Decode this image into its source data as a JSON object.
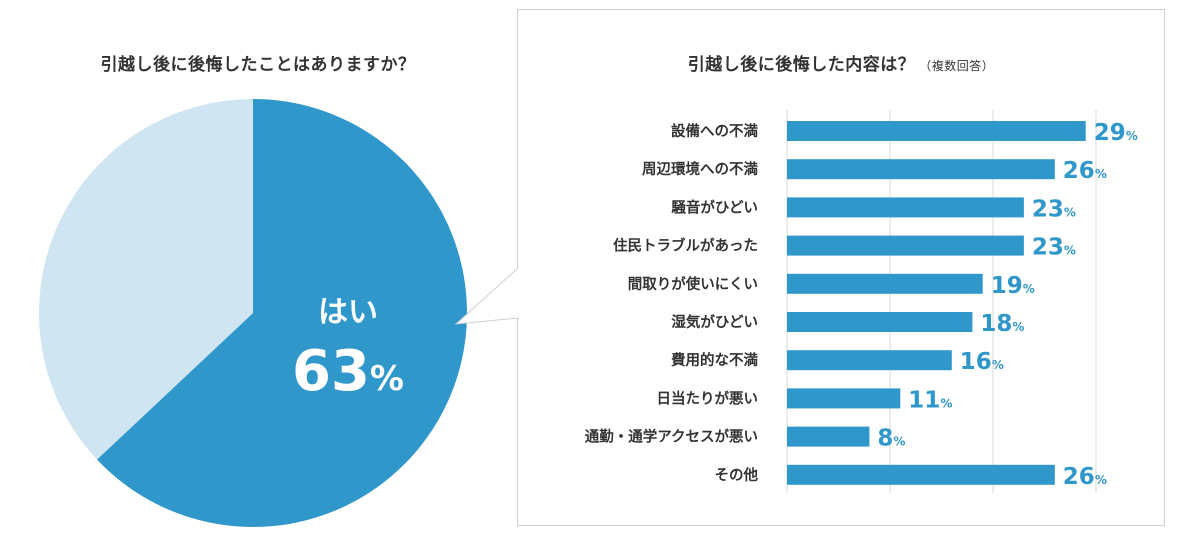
{
  "chart_data": [
    {
      "type": "pie",
      "title": "引越し後に後悔したことはありますか？",
      "slices": [
        {
          "label": "はい",
          "value": 63,
          "value_label": "63%"
        },
        {
          "label": "",
          "value": 37
        }
      ],
      "colors": [
        "#3097cb",
        "#cfe5f2"
      ]
    },
    {
      "type": "bar",
      "orientation": "horizontal",
      "title": "引越し後に後悔した内容は？",
      "subtitle": "（複数回答）",
      "categories": [
        "設備への不満",
        "周辺環境への不満",
        "騒音がひどい",
        "住民トラブルがあった",
        "間取りが使いにくい",
        "湿気がひどい",
        "費用的な不満",
        "日当たりが悪い",
        "通勤・通学アクセスが悪い",
        "その他"
      ],
      "values": [
        29,
        26,
        23,
        23,
        19,
        18,
        16,
        11,
        8,
        26
      ],
      "value_labels": [
        "29",
        "26",
        "23",
        "23",
        "19",
        "18",
        "16",
        "11",
        "8",
        "26"
      ],
      "unit": "%",
      "xlim": [
        0,
        30
      ],
      "grid": true,
      "colors": {
        "bar": "#3097cb",
        "label": "#3097cb",
        "grid": "#d8d8d8"
      }
    }
  ]
}
